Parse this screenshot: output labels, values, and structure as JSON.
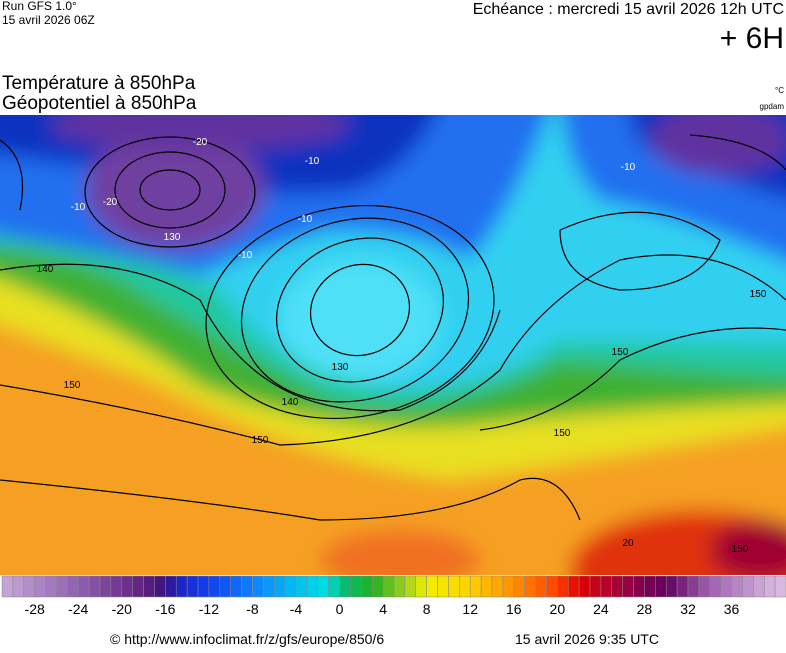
{
  "header": {
    "run": "Run GFS 1.0°",
    "run_date": "15 avril 2026 06Z",
    "forecast": "Echéance : mercredi 15 avril 2026 12h UTC",
    "step": "+ 6H",
    "title_temp": "Température à 850hPa",
    "title_geo": "Géopotentiel à 850hPa",
    "unit_temp": "°C",
    "unit_geo": "gpdam"
  },
  "map": {
    "contour_labels": [
      "-20",
      "-10",
      "-20",
      "130",
      "-10",
      "-10",
      "-10",
      "140",
      "150",
      "130",
      "140",
      "150",
      "150",
      "150",
      "150",
      "150",
      "20",
      "-10"
    ]
  },
  "colorbar": {
    "range": [
      -31,
      41
    ],
    "ticks": [
      -28,
      -24,
      -20,
      -16,
      -12,
      -8,
      -4,
      0,
      4,
      8,
      12,
      16,
      20,
      24,
      28,
      32,
      36
    ],
    "stops": [
      {
        "value": -31,
        "color": "#c8a8d8"
      },
      {
        "value": -24,
        "color": "#9060b0"
      },
      {
        "value": -18,
        "color": "#602080"
      },
      {
        "value": -16,
        "color": "#3a1080"
      },
      {
        "value": -15,
        "color": "#2020c0"
      },
      {
        "value": -12,
        "color": "#1040f0"
      },
      {
        "value": -8,
        "color": "#1080ff"
      },
      {
        "value": -4,
        "color": "#00c0f0"
      },
      {
        "value": -1,
        "color": "#00e0e0"
      },
      {
        "value": 0,
        "color": "#00c080"
      },
      {
        "value": 3,
        "color": "#20b020"
      },
      {
        "value": 6,
        "color": "#a0d020"
      },
      {
        "value": 8,
        "color": "#f0f000"
      },
      {
        "value": 12,
        "color": "#ffd000"
      },
      {
        "value": 16,
        "color": "#ff9000"
      },
      {
        "value": 20,
        "color": "#ff4000"
      },
      {
        "value": 22,
        "color": "#e00000"
      },
      {
        "value": 26,
        "color": "#a00040"
      },
      {
        "value": 30,
        "color": "#600060"
      },
      {
        "value": 34,
        "color": "#a060b0"
      },
      {
        "value": 40,
        "color": "#d8b8e0"
      }
    ]
  },
  "footer": {
    "url": "© http://www.infoclimat.fr/z/gfs/europe/850/6",
    "generated": "15 avril 2026  9:35 UTC"
  }
}
